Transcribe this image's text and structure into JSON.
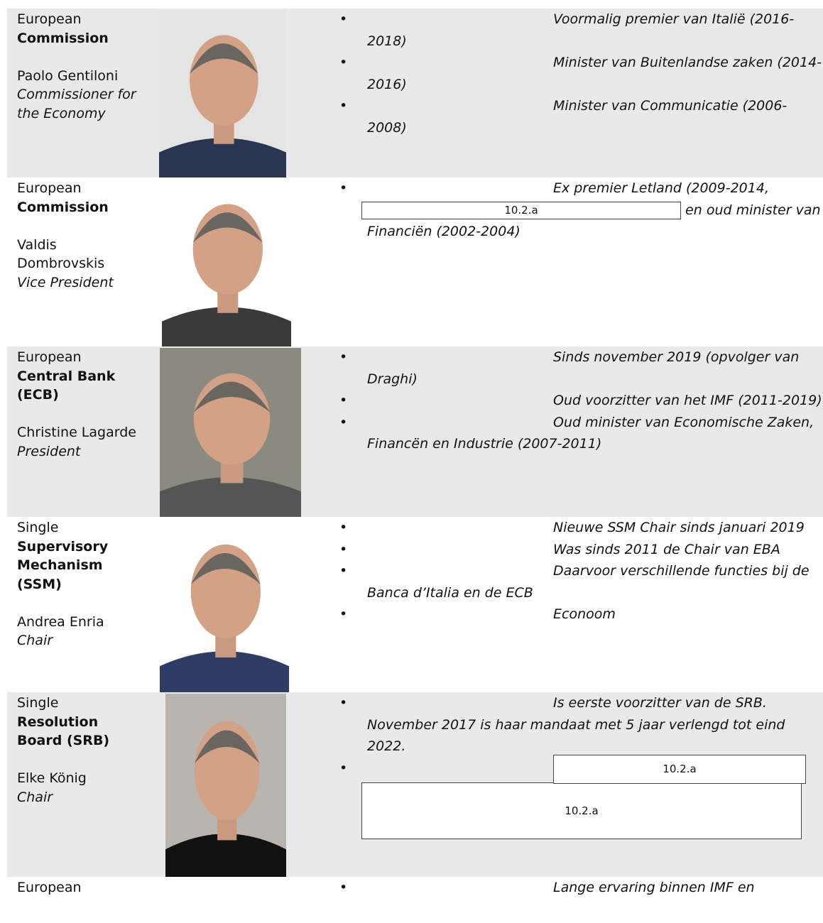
{
  "rows": [
    {
      "org": "European",
      "body": "Commission",
      "name": "Paolo Gentiloni",
      "role": "Commissioner for the Economy",
      "bullets": [
        [
          {
            "text": "Voormalig premier van Italië (2016-2018)"
          }
        ],
        [
          {
            "text": "Minister van Buitenlandse zaken (2014-2016)"
          }
        ],
        [
          {
            "text": "Minister van Communicatie (2006-2008)"
          }
        ]
      ]
    },
    {
      "org": "European",
      "body": "Commission",
      "name": "Valdis Dombrovskis",
      "role": "Vice President",
      "bullets": [
        [
          {
            "text": "Ex premier Letland (2009-2014,"
          },
          {
            "redacted": "10.2.a"
          },
          {
            "text": "en oud minister van Financiën (2002-2004)"
          }
        ]
      ]
    },
    {
      "org": "European",
      "body": "Central Bank (ECB)",
      "name": "Christine Lagarde",
      "role": "President",
      "bullets": [
        [
          {
            "text": "Sinds november 2019 (opvolger van Draghi)"
          }
        ],
        [
          {
            "text": "Oud voorzitter van het IMF (2011-2019)"
          }
        ],
        [
          {
            "text": "Oud minister van Economische Zaken, Financën en Industrie (2007-2011)"
          }
        ]
      ]
    },
    {
      "org": "Single",
      "body": "Supervisory Mechanism (SSM)",
      "name": "Andrea Enria",
      "role": "Chair",
      "bullets": [
        [
          {
            "text": "Nieuwe SSM Chair sinds januari 2019"
          }
        ],
        [
          {
            "text": "Was sinds 2011 de Chair van EBA"
          }
        ],
        [
          {
            "text": "Daarvoor verschillende functies bij de Banca d’Italia en de ECB"
          }
        ],
        [
          {
            "text": "Econoom"
          }
        ]
      ]
    },
    {
      "org": "Single",
      "body": "Resolution Board (SRB)",
      "name": "Elke König",
      "role": "Chair",
      "bullets": [
        [
          {
            "text": "Is eerste voorzitter van de SRB. November 2017 is haar mandaat met 5 jaar verlengd tot eind 2022."
          }
        ],
        [
          {
            "redacted": "10.2.a"
          }
        ]
      ],
      "redacted_block": "10.2.a"
    },
    {
      "org": "European",
      "bullets": [
        [
          {
            "text": "Lange ervaring binnen IMF en"
          }
        ]
      ]
    }
  ]
}
